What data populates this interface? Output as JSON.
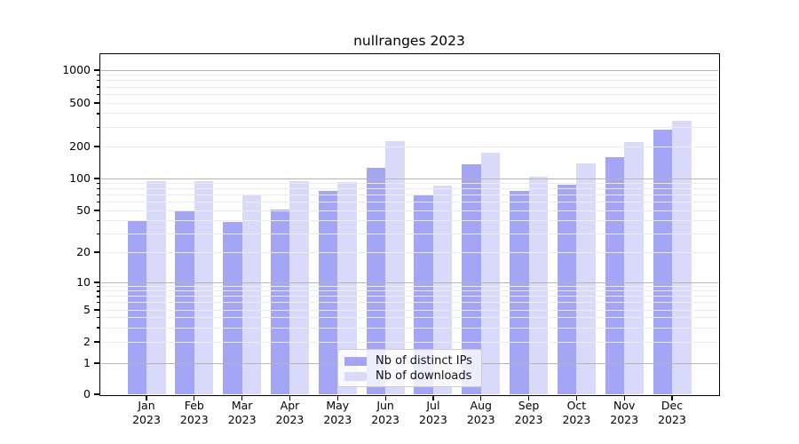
{
  "title": "nullranges 2023",
  "chart_data": {
    "type": "bar",
    "title": "nullranges 2023",
    "categories": [
      "Jan",
      "Feb",
      "Mar",
      "Apr",
      "May",
      "Jun",
      "Jul",
      "Aug",
      "Sep",
      "Oct",
      "Nov",
      "Dec"
    ],
    "x_year": "2023",
    "series": [
      {
        "name": "Nb of distinct IPs",
        "color": "#a5a5f5",
        "values": [
          40,
          49,
          39,
          51,
          77,
          125,
          71,
          137,
          77,
          88,
          158,
          285
        ]
      },
      {
        "name": "Nb of downloads",
        "color": "#d9d9fa",
        "values": [
          95,
          94,
          70,
          94,
          93,
          224,
          86,
          176,
          104,
          139,
          218,
          342
        ]
      }
    ],
    "yscale": "symlog",
    "y_ticks": [
      1000,
      500,
      200,
      100,
      50,
      20,
      10,
      5,
      2,
      1,
      0
    ],
    "ylim": [
      0,
      1500
    ],
    "xlabel": "",
    "ylabel": "",
    "grid": "on",
    "legend_position": "lower center"
  },
  "legend": {
    "items": [
      {
        "label": "Nb of distinct IPs",
        "color": "#a5a5f5"
      },
      {
        "label": "Nb of downloads",
        "color": "#d9d9fa"
      }
    ]
  }
}
